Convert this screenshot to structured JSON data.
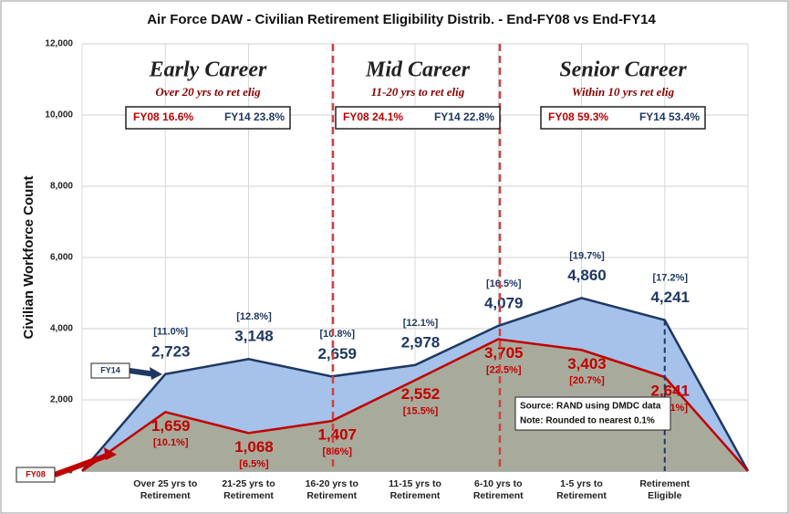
{
  "chart_data": {
    "type": "area",
    "title": "Air Force DAW - Civilian Retirement Eligibility Distrib. - End-FY08 vs End-FY14",
    "y_label": "Civilian Workforce Count",
    "categories": [
      null,
      "Over 25 yrs to Retirement",
      "21-25 yrs to Retirement",
      "16-20 yrs to Retirement",
      "11-15 yrs to Retirement",
      "6-10 yrs to Retirement",
      "1-5 yrs to Retirement",
      "Retirement Eligible",
      null
    ],
    "series": [
      {
        "name": "FY14",
        "color": "#1f3864",
        "fill": "#a4c2ea",
        "values": [
          0,
          2723,
          3148,
          2659,
          2978,
          4079,
          4860,
          4241,
          0
        ],
        "value_labels": [
          null,
          "2,723",
          "3,148",
          "2,659",
          "2,978",
          "4,079",
          "4,860",
          "4,241",
          null
        ],
        "share_labels": [
          null,
          "[11.0%]",
          "[12.8%]",
          "[10.8%]",
          "[12.1%]",
          "[16.5%]",
          "[19.7%]",
          "[17.2%]",
          null
        ]
      },
      {
        "name": "FY08",
        "color": "#c00000",
        "fill": "#a8ab9c",
        "values": [
          0,
          1659,
          1068,
          1407,
          2552,
          3705,
          3403,
          2641,
          0
        ],
        "value_labels": [
          null,
          "1,659",
          "1,068",
          "1,407",
          "2,552",
          "3,705",
          "3,403",
          "2,641",
          null
        ],
        "share_labels": [
          null,
          "[10.1%]",
          "[6.5%]",
          "[8.6%]",
          "[15.5%]",
          "[22.5%]",
          "[20.7%]",
          "[16.1%]",
          null
        ]
      }
    ],
    "ylim": [
      0,
      12000
    ],
    "yticks": [
      0,
      {
        "value": 2000,
        "label": "2,000"
      },
      {
        "value": 4000,
        "label": "4,000"
      },
      {
        "value": 6000,
        "label": "6,000"
      },
      {
        "value": 8000,
        "label": "8,000"
      },
      {
        "value": 10000,
        "label": "10,000"
      },
      {
        "value": 12000,
        "label": "12,000"
      }
    ],
    "grid": true,
    "regions": [
      {
        "title": "Early Career",
        "subtitle": "Over 20 yrs to ret elig",
        "fy08": "FY08 16.6%",
        "fy14": "FY14 23.8%"
      },
      {
        "title": "Mid Career",
        "subtitle": "11-20 yrs to ret elig",
        "fy08": "FY08 24.1%",
        "fy14": "FY14 22.8%"
      },
      {
        "title": "Senior Career",
        "subtitle": "Within 10 yrs ret elig",
        "fy08": "FY08 59.3%",
        "fy14": "FY14 53.4%"
      }
    ],
    "note_box": [
      "Source:  RAND using DMDC data",
      "Note:  Rounded to nearest 0.1%"
    ]
  }
}
